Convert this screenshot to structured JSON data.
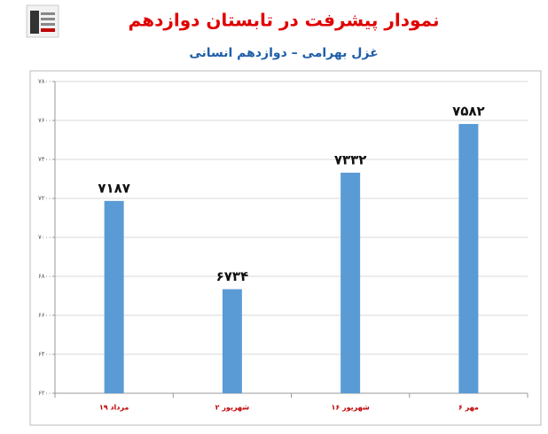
{
  "chart_data": {
    "type": "bar",
    "title": "نمودار پیشرفت در تابستان دوازدهم",
    "subtitle": "غزل بهرامی – دوازدهم انسانی",
    "categories": [
      "۱۹ مرداد",
      "۲ شهریور",
      "۱۶ شهریور",
      "۶ مهر"
    ],
    "values": [
      7187,
      6734,
      7332,
      7582
    ],
    "value_labels": [
      "۷۱۸۷",
      "۶۷۳۴",
      "۷۳۳۲",
      "۷۵۸۲"
    ],
    "color": "#5b9bd5",
    "ylim": [
      6200,
      7800
    ],
    "yticks": [
      {
        "value": 6200,
        "label": "۶۲۰۰"
      },
      {
        "value": 6400,
        "label": "۶۴۰۰"
      },
      {
        "value": 6600,
        "label": "۶۶۰۰"
      },
      {
        "value": 6800,
        "label": "۶۸۰۰"
      },
      {
        "value": 7000,
        "label": "۷۰۰۰"
      },
      {
        "value": 7200,
        "label": "۷۲۰۰"
      },
      {
        "value": 7400,
        "label": "۷۴۰۰"
      },
      {
        "value": 7600,
        "label": "۷۶۰۰"
      },
      {
        "value": 7800,
        "label": "۷۸۰۰"
      }
    ],
    "grid": true
  }
}
